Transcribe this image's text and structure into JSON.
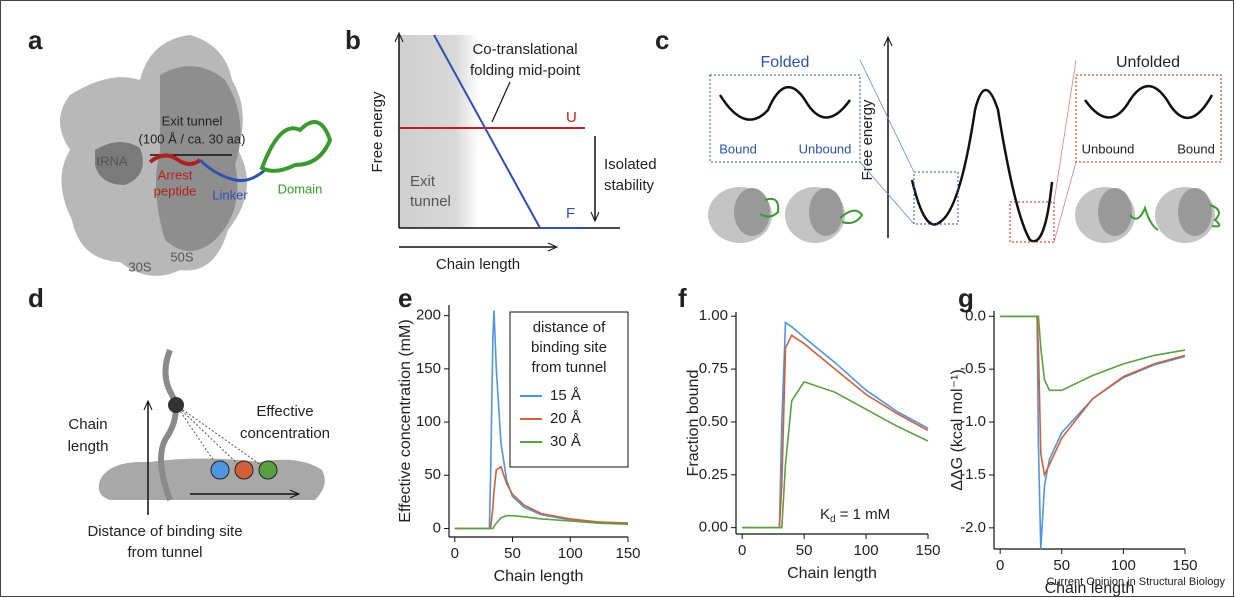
{
  "panel_labels": [
    "a",
    "b",
    "c",
    "d",
    "e",
    "f",
    "g"
  ],
  "panel_a": {
    "exit_tunnel": "Exit tunnel",
    "tunnel_size": "(100 Å / ca. 30 aa)",
    "trna": "tRNA",
    "arrest": "Arrest",
    "peptide": "peptide",
    "linker": "Linker",
    "domain": "Domain",
    "small_subunit": "30S",
    "large_subunit": "50S"
  },
  "panel_b": {
    "midpoint_1": "Co-translational",
    "midpoint_2": "folding mid-point",
    "y_label": "Free energy",
    "x_label": "Chain length",
    "tunnel_1": "Exit",
    "tunnel_2": "tunnel",
    "unfolded": "U",
    "folded": "F",
    "stability_1": "Isolated",
    "stability_2": "stability"
  },
  "panel_c": {
    "folded": "Folded",
    "unfolded": "Unfolded",
    "left_bound": "Bound",
    "left_unbound": "Unbound",
    "right_unbound": "Unbound",
    "right_bound": "Bound",
    "y_label": "Free energy"
  },
  "panel_d": {
    "chain_1": "Chain",
    "chain_2": "length",
    "eff_1": "Effective",
    "eff_2": "concentration",
    "dist_1": "Distance of binding site",
    "dist_2": "from tunnel"
  },
  "chart_data": [
    {
      "type": "line",
      "x_label": "Chain length",
      "y_label": "Effective concentration (mM)",
      "legend_title": [
        "distance of",
        "binding site",
        "from tunnel"
      ],
      "x": [
        0,
        30,
        31,
        33,
        34,
        36,
        40,
        45,
        50,
        60,
        75,
        100,
        125,
        150
      ],
      "series": [
        {
          "name": "15 Å",
          "color": "#4f96e0",
          "values": [
            0,
            0,
            50,
            180,
            205,
            150,
            80,
            45,
            30,
            20,
            13,
            8,
            6,
            5
          ]
        },
        {
          "name": "20 Å",
          "color": "#d0603a",
          "values": [
            0,
            0,
            0,
            20,
            35,
            55,
            58,
            42,
            32,
            22,
            14,
            9,
            6,
            5
          ]
        },
        {
          "name": "30 Å",
          "color": "#5aa040",
          "values": [
            0,
            0,
            0,
            0,
            2,
            5,
            10,
            12,
            12,
            11,
            9,
            7,
            5,
            4
          ]
        }
      ],
      "xlim": [
        -5,
        150
      ],
      "xticks": [
        0,
        50,
        100,
        150
      ],
      "ylim": [
        -8,
        210
      ],
      "yticks": [
        0,
        50,
        100,
        150,
        200
      ]
    },
    {
      "type": "line",
      "x_label": "Chain length",
      "y_label": "Fraction bound",
      "annotation": [
        "K",
        "d",
        " = 1 mM"
      ],
      "x": [
        0,
        30,
        32,
        35,
        40,
        50,
        75,
        100,
        125,
        150
      ],
      "series": [
        {
          "color": "#4f96e0",
          "values": [
            0,
            0,
            0.5,
            0.97,
            0.95,
            0.9,
            0.78,
            0.65,
            0.55,
            0.47
          ]
        },
        {
          "color": "#d0603a",
          "values": [
            0,
            0,
            0.2,
            0.85,
            0.91,
            0.87,
            0.75,
            0.63,
            0.54,
            0.46
          ]
        },
        {
          "color": "#5aa040",
          "values": [
            0,
            0,
            0,
            0.3,
            0.6,
            0.69,
            0.64,
            0.56,
            0.48,
            0.41
          ]
        }
      ],
      "xlim": [
        -5,
        150
      ],
      "xticks": [
        0,
        50,
        100,
        150
      ],
      "ylim": [
        -0.03,
        1.02
      ],
      "yticks": [
        {
          "value": 0,
          "label": "0.00"
        },
        {
          "value": 0.25,
          "label": "0.25"
        },
        {
          "value": 0.5,
          "label": "0.50"
        },
        {
          "value": 0.75,
          "label": "0.75"
        },
        {
          "value": 1,
          "label": "1.00"
        }
      ]
    },
    {
      "type": "line",
      "x_label": "Chain length",
      "y_label": "ΔΔG (kcal mol⁻¹)",
      "x": [
        0,
        30,
        31,
        33,
        36,
        40,
        50,
        75,
        100,
        125,
        150
      ],
      "series": [
        {
          "color": "#4f96e0",
          "values": [
            0,
            0,
            -1.2,
            -2.2,
            -1.6,
            -1.35,
            -1.1,
            -0.78,
            -0.58,
            -0.46,
            -0.38
          ]
        },
        {
          "color": "#d0603a",
          "values": [
            0,
            0,
            -0.3,
            -1.3,
            -1.5,
            -1.4,
            -1.15,
            -0.78,
            -0.57,
            -0.45,
            -0.37
          ]
        },
        {
          "color": "#5aa040",
          "values": [
            0,
            0,
            0,
            -0.3,
            -0.6,
            -0.7,
            -0.7,
            -0.56,
            -0.45,
            -0.37,
            -0.32
          ]
        }
      ],
      "xlim": [
        -5,
        150
      ],
      "xticks": [
        0,
        50,
        100,
        150
      ],
      "ylim": [
        -2.2,
        0.05
      ],
      "yticks": [
        {
          "value": 0,
          "label": "0.0"
        },
        {
          "value": -0.5,
          "label": "-0.5"
        },
        {
          "value": -1,
          "label": "-1.0"
        },
        {
          "value": -1.5,
          "label": "-1.5"
        },
        {
          "value": -2,
          "label": "-2.0"
        }
      ]
    }
  ],
  "footer": "Current Opinion in Structural Biology"
}
